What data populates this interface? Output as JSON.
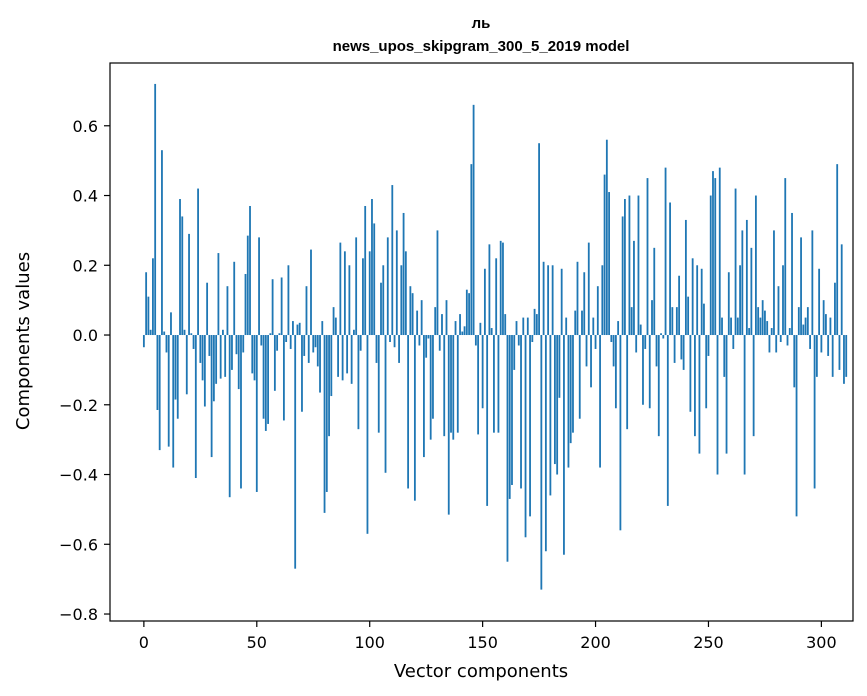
{
  "chart_data": {
    "type": "bar",
    "title_lines": [
      "ль",
      "news_upos_skipgram_300_5_2019 model"
    ],
    "xlabel": "Vector components",
    "ylabel": "Components values",
    "xlim": [
      -15,
      314
    ],
    "ylim": [
      -0.82,
      0.78
    ],
    "xticks": [
      0,
      50,
      100,
      150,
      200,
      250,
      300
    ],
    "yticks": [
      -0.8,
      -0.6,
      -0.4,
      -0.2,
      0.0,
      0.2,
      0.4,
      0.6
    ],
    "ytick_labels": [
      "−0.8",
      "−0.6",
      "−0.4",
      "−0.2",
      "0.0",
      "0.2",
      "0.4",
      "0.6"
    ],
    "grid": false,
    "bar_color": "#1f77b4",
    "values": [
      -0.035,
      0.18,
      0.11,
      0.015,
      0.22,
      0.72,
      -0.215,
      -0.33,
      0.53,
      0.01,
      -0.05,
      -0.32,
      0.065,
      -0.38,
      -0.185,
      -0.24,
      0.39,
      0.34,
      0.015,
      -0.17,
      0.29,
      0.005,
      -0.04,
      -0.41,
      0.42,
      -0.08,
      -0.13,
      -0.205,
      0.15,
      -0.06,
      -0.35,
      -0.19,
      -0.14,
      0.235,
      -0.125,
      0.015,
      -0.12,
      0.14,
      -0.465,
      -0.1,
      0.21,
      -0.055,
      -0.155,
      -0.44,
      -0.05,
      0.175,
      0.285,
      0.37,
      -0.11,
      -0.13,
      -0.45,
      0.28,
      -0.03,
      -0.24,
      -0.275,
      -0.255,
      0.005,
      0.16,
      -0.16,
      -0.045,
      0.005,
      0.165,
      -0.245,
      -0.02,
      0.2,
      -0.04,
      0.04,
      -0.67,
      0.03,
      0.035,
      -0.22,
      -0.06,
      0.14,
      -0.08,
      0.245,
      -0.05,
      -0.035,
      -0.09,
      -0.165,
      0.04,
      -0.51,
      -0.45,
      -0.29,
      -0.175,
      0.08,
      0.05,
      -0.12,
      0.265,
      -0.13,
      0.24,
      -0.11,
      0.2,
      -0.14,
      0.015,
      0.28,
      -0.27,
      -0.045,
      0.22,
      0.37,
      -0.57,
      0.24,
      0.39,
      0.32,
      -0.08,
      -0.28,
      0.15,
      0.2,
      -0.395,
      0.28,
      -0.02,
      0.43,
      -0.035,
      0.3,
      -0.08,
      0.2,
      0.35,
      0.24,
      -0.44,
      0.14,
      0.12,
      -0.475,
      0.07,
      -0.03,
      0.1,
      -0.35,
      -0.065,
      -0.01,
      -0.3,
      -0.24,
      0.08,
      0.3,
      -0.045,
      0.06,
      -0.29,
      0.1,
      -0.515,
      -0.28,
      -0.3,
      0.04,
      -0.28,
      0.06,
      0.01,
      0.025,
      0.13,
      0.12,
      0.49,
      0.66,
      -0.03,
      -0.285,
      0.035,
      -0.21,
      0.19,
      -0.49,
      0.26,
      0.02,
      -0.28,
      0.22,
      -0.28,
      0.27,
      0.265,
      0.06,
      -0.65,
      -0.47,
      -0.43,
      -0.1,
      0.04,
      -0.03,
      -0.44,
      0.05,
      -0.58,
      0.05,
      -0.52,
      -0.02,
      0.075,
      0.06,
      0.55,
      -0.73,
      0.21,
      -0.62,
      0.2,
      -0.46,
      0.2,
      -0.37,
      -0.4,
      -0.18,
      0.19,
      -0.63,
      0.05,
      -0.38,
      -0.31,
      -0.28,
      0.07,
      0.21,
      -0.24,
      0.07,
      0.18,
      -0.09,
      0.265,
      -0.15,
      0.05,
      -0.04,
      0.14,
      -0.38,
      0.2,
      0.46,
      0.56,
      0.41,
      -0.02,
      -0.09,
      -0.21,
      0.04,
      -0.56,
      0.34,
      0.39,
      -0.27,
      0.4,
      0.08,
      0.27,
      -0.05,
      0.4,
      0.03,
      -0.2,
      -0.04,
      0.45,
      -0.21,
      0.1,
      0.25,
      -0.09,
      -0.29,
      0.005,
      -0.01,
      0.48,
      -0.49,
      0.38,
      0.08,
      -0.08,
      0.08,
      0.17,
      -0.07,
      -0.1,
      0.33,
      0.11,
      -0.22,
      0.22,
      -0.29,
      0.2,
      -0.34,
      0.19,
      0.09,
      -0.21,
      -0.06,
      0.4,
      0.47,
      0.45,
      -0.4,
      0.48,
      0.05,
      -0.12,
      -0.34,
      0.18,
      0.05,
      -0.04,
      0.42,
      0.05,
      0.2,
      0.3,
      -0.4,
      0.33,
      0.02,
      0.25,
      -0.29,
      0.4,
      0.08,
      0.05,
      0.1,
      0.07,
      0.04,
      -0.05,
      0.02,
      0.3,
      -0.05,
      0.14,
      -0.02,
      0.2,
      0.45,
      -0.03,
      0.02,
      0.35,
      -0.15,
      -0.52,
      0.08,
      0.28,
      0.03,
      0.05,
      0.08,
      -0.04,
      0.3,
      -0.44,
      -0.12,
      0.19,
      -0.05,
      0.1,
      0.06,
      -0.06,
      0.05,
      -0.12,
      0.15,
      0.49,
      -0.1,
      0.26,
      -0.14,
      -0.12
    ]
  }
}
